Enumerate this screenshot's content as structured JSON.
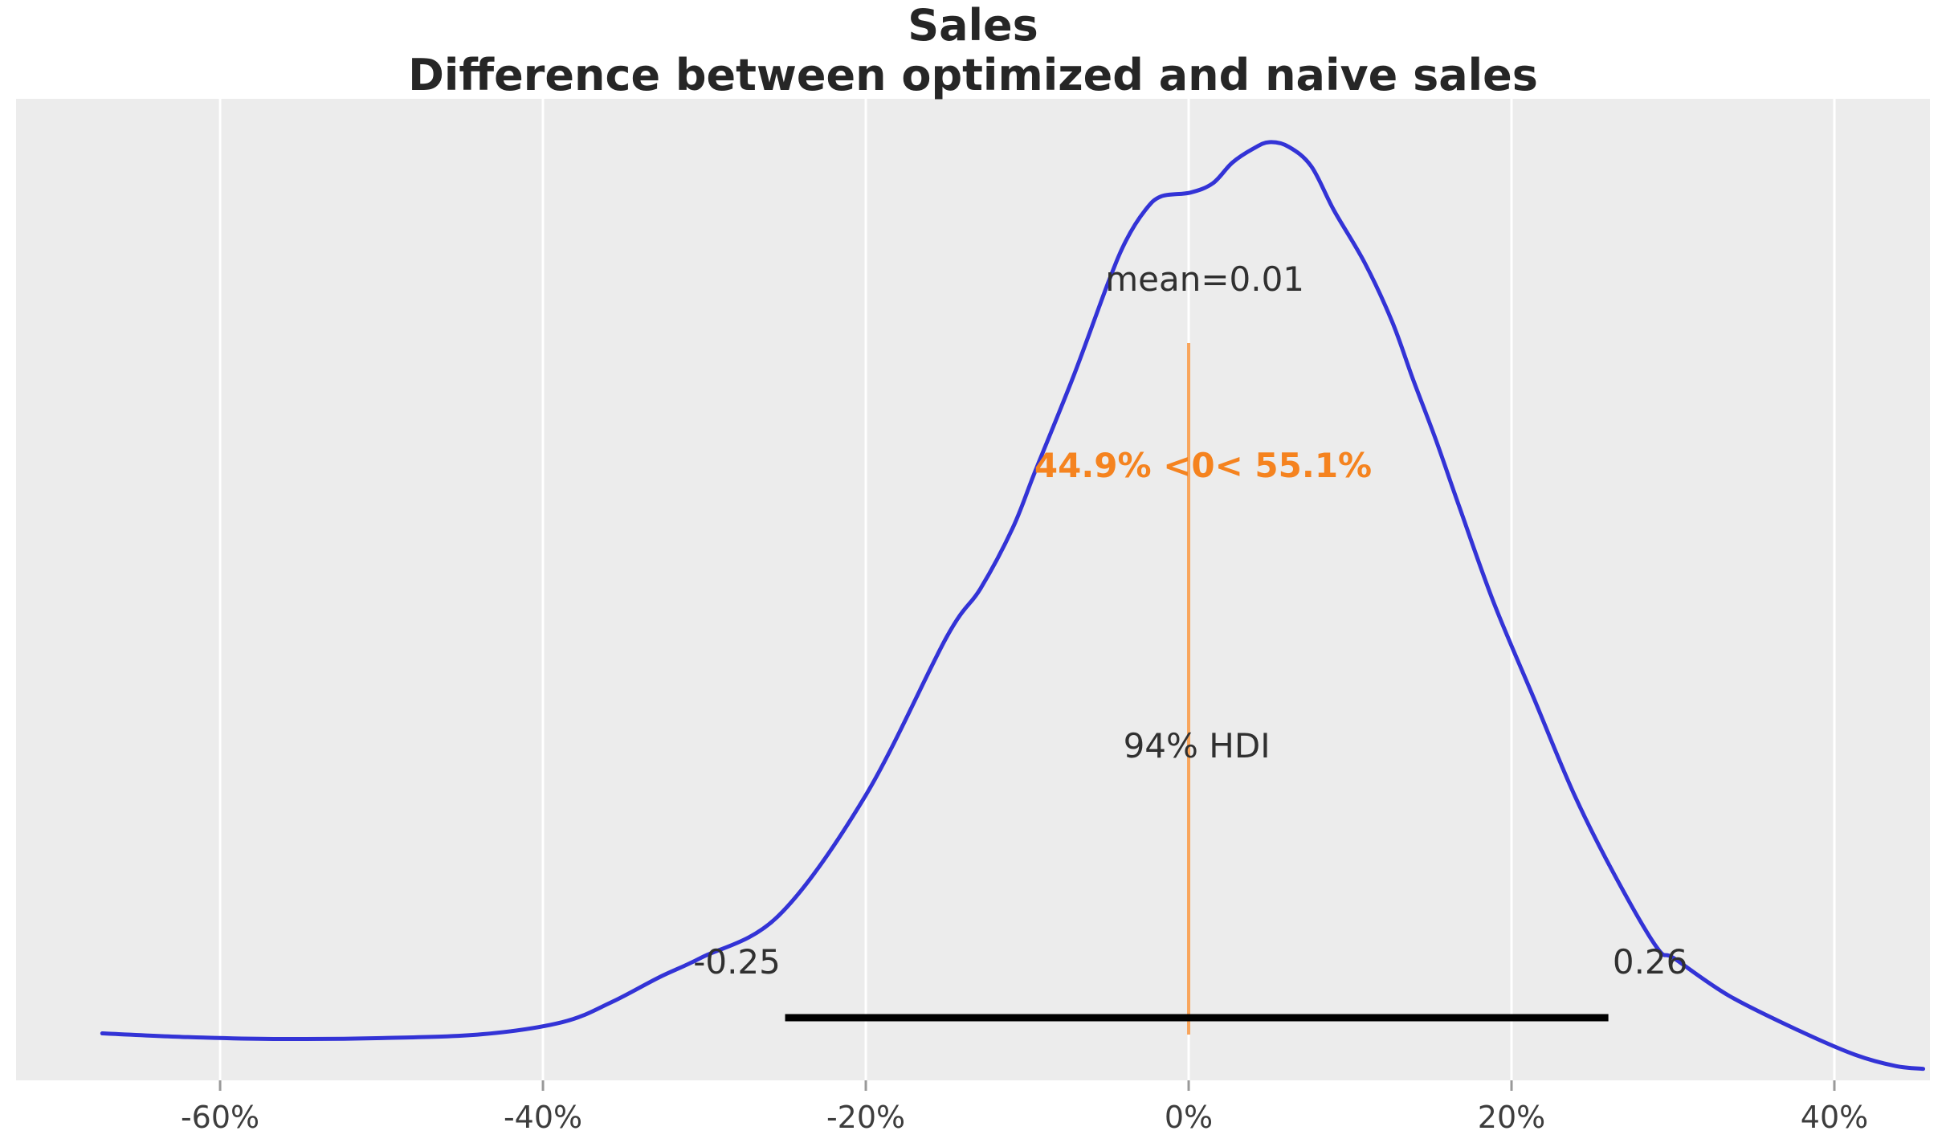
{
  "figure": {
    "title_line1": "Sales",
    "title_line2": "Difference between optimized and naive sales"
  },
  "annotations": {
    "mean_label": "mean=0.01",
    "ref_label": "44.9% <0< 55.1%",
    "hdi_label": "94% HDI",
    "hdi_low_label": "-0.25",
    "hdi_high_label": "0.26"
  },
  "colors": {
    "plot_background": "#ececec",
    "gridline": "#ffffff",
    "curve": "#3333d6",
    "ref_line": "#f8a55c",
    "ref_text": "#f5831f",
    "hdi_line": "#000000",
    "annotation_text": "#303030",
    "tick_label": "#3d3d3d",
    "tick_mark": "#999999"
  },
  "chart_data": {
    "type": "line",
    "subtype": "kde-posterior-density",
    "title": "Sales",
    "subtitle": "Difference between optimized and naive sales",
    "xlabel": "",
    "ylabel": "",
    "legend": "none",
    "grid": "vertical white gridlines on gray panel",
    "x_tick_labels": [
      "-60%",
      "-40%",
      "-20%",
      "0%",
      "20%",
      "40%"
    ],
    "x_tick_values": [
      -0.6,
      -0.4,
      -0.2,
      0.0,
      0.2,
      0.4
    ],
    "xlim": [
      -0.7264,
      0.4592
    ],
    "ylim_density": [
      -0.0043,
      1.0464
    ],
    "stats": {
      "mean": 0.01,
      "hdi_prob": "94%",
      "hdi_low": -0.25,
      "hdi_high": 0.26,
      "ref_value": 0,
      "pct_below_ref": 44.9,
      "pct_above_ref": 55.1
    },
    "series": [
      {
        "name": "posterior density (normalized, peak = 1)",
        "x": [
          -0.673,
          -0.62,
          -0.567,
          -0.5,
          -0.438,
          -0.388,
          -0.358,
          -0.328,
          -0.302,
          -0.254,
          -0.2,
          -0.15,
          -0.129,
          -0.109,
          -0.095,
          -0.071,
          -0.05,
          -0.039,
          -0.027,
          -0.017,
          0.001,
          0.015,
          0.027,
          0.04,
          0.05,
          0.062,
          0.076,
          0.09,
          0.109,
          0.126,
          0.139,
          0.153,
          0.168,
          0.189,
          0.214,
          0.239,
          0.264,
          0.29,
          0.301,
          0.335,
          0.378,
          0.413,
          0.438,
          0.455
        ],
        "y": [
          0.046,
          0.042,
          0.04,
          0.041,
          0.045,
          0.058,
          0.079,
          0.106,
          0.127,
          0.172,
          0.301,
          0.47,
          0.522,
          0.587,
          0.648,
          0.751,
          0.849,
          0.894,
          0.927,
          0.942,
          0.946,
          0.956,
          0.978,
          0.993,
          1.0,
          0.995,
          0.974,
          0.927,
          0.871,
          0.808,
          0.746,
          0.682,
          0.608,
          0.507,
          0.404,
          0.301,
          0.215,
          0.138,
          0.126,
          0.086,
          0.049,
          0.023,
          0.011,
          0.008
        ]
      }
    ]
  }
}
